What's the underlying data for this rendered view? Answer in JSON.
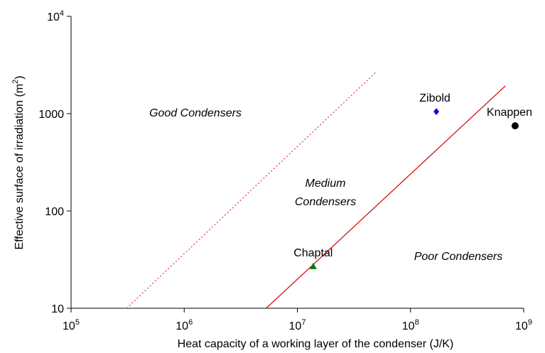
{
  "chart_data": {
    "type": "scatter",
    "xlabel": "Heat capacity of a working layer of the condenser (J/K)",
    "ylabel": "Effective surface of irradiation (m^2)",
    "xscale": "log",
    "yscale": "log",
    "xlim": [
      100000,
      1000000000
    ],
    "ylim": [
      10,
      10000
    ],
    "xticks": [
      {
        "value": 100000,
        "label": "10^5"
      },
      {
        "value": 1000000,
        "label": "10^6"
      },
      {
        "value": 10000000,
        "label": "10^7"
      },
      {
        "value": 100000000,
        "label": "10^8"
      },
      {
        "value": 1000000000,
        "label": "10^9"
      }
    ],
    "yticks": [
      10,
      100,
      1000,
      {
        "value": 10000,
        "label": "10^4"
      }
    ],
    "series": [
      {
        "name": "Zibold",
        "color": "#1010c0",
        "marker": "diamond",
        "x": [
          169000000
        ],
        "values": [
          1050
        ]
      },
      {
        "name": "Knappen",
        "color": "#000000",
        "marker": "circle",
        "x": [
          840000000
        ],
        "values": [
          750
        ]
      },
      {
        "name": "Chaptal",
        "color": "#008000",
        "marker": "triangle",
        "x": [
          13800000
        ],
        "values": [
          27
        ]
      }
    ],
    "lines": [
      {
        "color": "#e03050",
        "style": "dotted",
        "x": [
          310000,
          50000000
        ],
        "values": [
          10,
          2700
        ]
      },
      {
        "color": "#cc0000",
        "style": "solid",
        "x": [
          5300000,
          690000000
        ],
        "values": [
          10,
          1930
        ]
      }
    ],
    "annotations": [
      "Good Condensers",
      "Medium\nCondensers",
      "Poor Condensers"
    ]
  }
}
